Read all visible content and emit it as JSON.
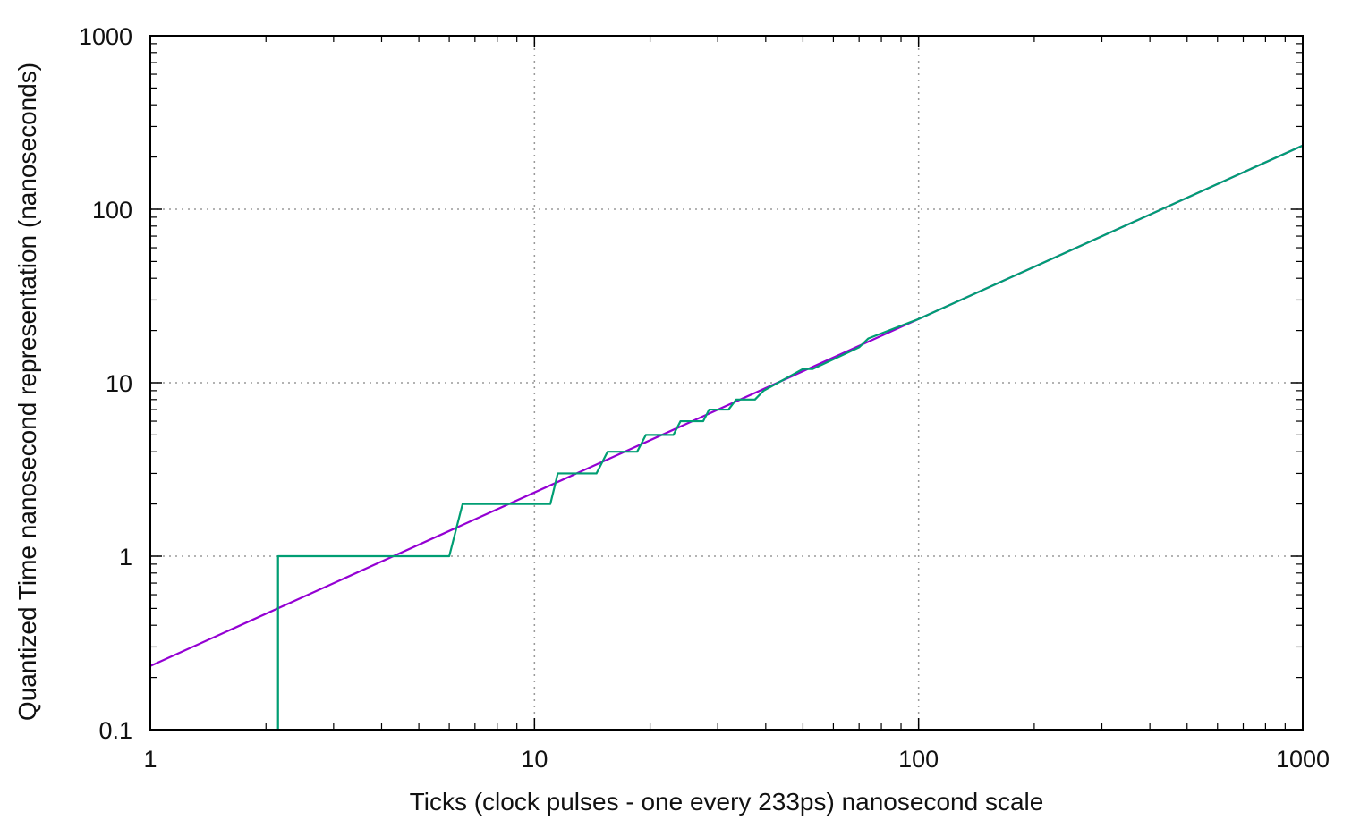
{
  "chart_data": {
    "type": "line",
    "title": "",
    "xlabel": "Ticks (clock pulses - one every 233ps) nanosecond scale",
    "ylabel": "Quantized Time nanosecond representation (nanoseconds)",
    "x_scale": "log",
    "y_scale": "log",
    "xlim": [
      1,
      1000
    ],
    "ylim": [
      0.1,
      1000
    ],
    "x_ticks": [
      1,
      10,
      100,
      1000
    ],
    "x_tick_labels": [
      "1",
      "10",
      "100",
      "1000"
    ],
    "y_ticks": [
      0.1,
      1,
      10,
      100,
      1000
    ],
    "y_tick_labels": [
      "0.1",
      "1",
      "10",
      "100",
      "1000"
    ],
    "grid": true,
    "legend": "none",
    "series": [
      {
        "color": "#9400d3",
        "x": [
          1,
          1000
        ],
        "y": [
          0.233,
          233
        ]
      },
      {
        "color": "#009e73",
        "x": [
          2.15,
          2.15,
          6.0,
          6.5,
          11.0,
          11.5,
          14.5,
          15.5,
          18.5,
          19.5,
          23.0,
          24.0,
          27.5,
          28.5,
          32.0,
          33.5,
          37.5,
          39.5,
          50.0,
          53.0,
          70.0,
          74.0,
          100.0,
          200.0,
          500.0,
          1000.0
        ],
        "y": [
          0.1,
          1,
          1,
          2,
          2,
          3,
          3,
          4,
          4,
          5,
          5,
          6,
          6,
          7,
          7,
          8,
          8,
          9,
          12,
          12,
          16,
          18,
          23.3,
          46.6,
          116.5,
          233
        ]
      }
    ]
  }
}
